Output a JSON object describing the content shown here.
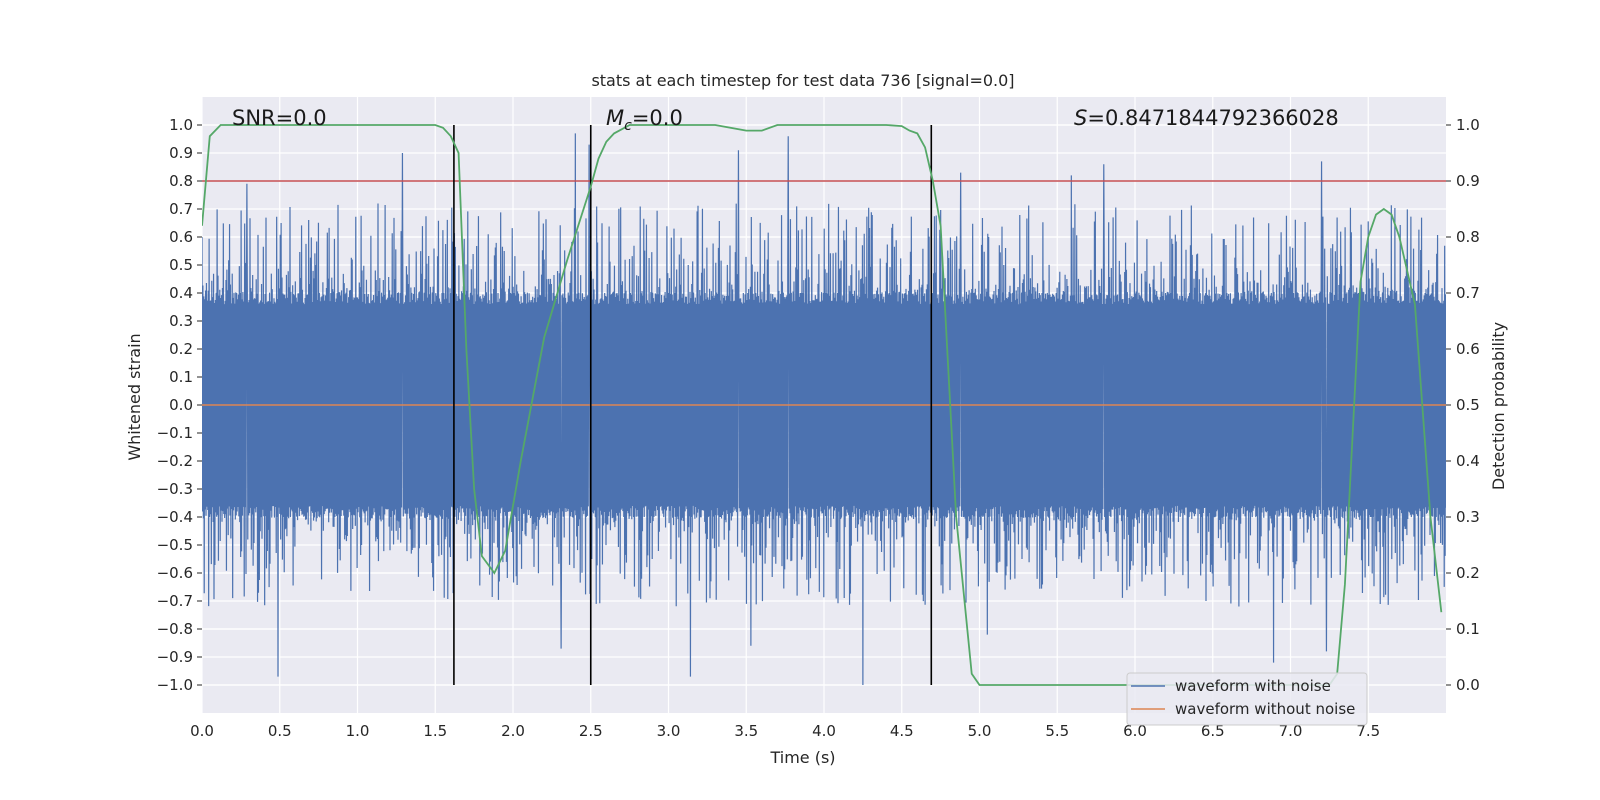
{
  "chart_data": {
    "type": "line",
    "title": "stats at each timestep for test data 736 [signal=0.0]",
    "xlabel": "Time (s)",
    "ylabel": "Whitened strain",
    "y2label": "Detection probability",
    "xlim": [
      0.0,
      8.0
    ],
    "ylim": [
      -1.1,
      1.1
    ],
    "y2lim": [
      -0.05,
      1.05
    ],
    "xticks": [
      "0.0",
      "0.5",
      "1.0",
      "1.5",
      "2.0",
      "2.5",
      "3.0",
      "3.5",
      "4.0",
      "4.5",
      "5.0",
      "5.5",
      "6.0",
      "6.5",
      "7.0",
      "7.5"
    ],
    "yticks": [
      "1.0",
      "0.9",
      "0.8",
      "0.7",
      "0.6",
      "0.5",
      "0.4",
      "0.3",
      "0.2",
      "0.1",
      "0.0",
      "−0.1",
      "−0.2",
      "−0.3",
      "−0.4",
      "−0.5",
      "−0.6",
      "−0.7",
      "−0.8",
      "−0.9",
      "−1.0"
    ],
    "y2ticks": [
      "1.0",
      "0.9",
      "0.8",
      "0.7",
      "0.6",
      "0.5",
      "0.4",
      "0.3",
      "0.2",
      "0.1",
      "0.0"
    ],
    "grid": true,
    "legend": {
      "placement": "lower-right",
      "entries": [
        {
          "label": "waveform with noise",
          "color": "#4c72b0"
        },
        {
          "label": "waveform without noise",
          "color": "#dd8452"
        }
      ]
    },
    "annotations": {
      "snr": "SNR=0.0",
      "mc_symbol": "M",
      "mc_sub": "c",
      "mc_value": "=0.0",
      "s_symbol": "S",
      "s_value": "=0.8471844792366028"
    },
    "threshold": {
      "axis": "y2",
      "value": 0.9,
      "color": "#c44e52"
    },
    "vlines": [
      1.62,
      2.5,
      4.69
    ],
    "noise_series": {
      "name": "waveform with noise",
      "color": "#4c72b0",
      "t_start": 0.0,
      "t_end": 8.0,
      "samples": 2800,
      "band_lower": -0.4,
      "band_upper": 0.4,
      "peaks_upper": [
        [
          0.29,
          0.79
        ],
        [
          1.29,
          0.9
        ],
        [
          2.4,
          0.97
        ],
        [
          2.49,
          0.93
        ],
        [
          3.45,
          0.91
        ],
        [
          3.77,
          0.96
        ],
        [
          4.88,
          0.83
        ],
        [
          5.59,
          0.82
        ],
        [
          5.8,
          0.86
        ],
        [
          7.2,
          0.87
        ]
      ],
      "peaks_lower": [
        [
          0.49,
          -0.97
        ],
        [
          2.31,
          -0.87
        ],
        [
          3.14,
          -0.97
        ],
        [
          4.25,
          -1.0
        ],
        [
          6.89,
          -0.92
        ],
        [
          7.23,
          -0.88
        ],
        [
          5.05,
          -0.82
        ],
        [
          3.53,
          -0.86
        ]
      ]
    },
    "clean_series": {
      "name": "waveform without noise",
      "color": "#dd8452",
      "x": [
        0.0,
        8.0
      ],
      "y": [
        0.0,
        0.0
      ]
    },
    "probability_series": {
      "name": "Detection probability",
      "color": "#55a868",
      "x": [
        0.0,
        0.05,
        0.12,
        0.25,
        0.5,
        0.8,
        1.0,
        1.2,
        1.4,
        1.5,
        1.55,
        1.6,
        1.65,
        1.7,
        1.75,
        1.8,
        1.88,
        1.95,
        2.05,
        2.2,
        2.35,
        2.5,
        2.55,
        2.6,
        2.65,
        2.75,
        3.0,
        3.3,
        3.5,
        3.6,
        3.7,
        3.9,
        4.2,
        4.4,
        4.5,
        4.55,
        4.6,
        4.65,
        4.7,
        4.75,
        4.85,
        4.95,
        5.0,
        5.1,
        5.4,
        5.8,
        6.2,
        6.6,
        7.0,
        7.2,
        7.25,
        7.3,
        7.35,
        7.4,
        7.45,
        7.5,
        7.55,
        7.6,
        7.65,
        7.7,
        7.8,
        7.9,
        7.97
      ],
      "y": [
        0.82,
        0.98,
        1.0,
        1.0,
        1.0,
        1.0,
        1.0,
        1.0,
        1.0,
        1.0,
        0.995,
        0.98,
        0.95,
        0.6,
        0.35,
        0.23,
        0.2,
        0.24,
        0.4,
        0.62,
        0.76,
        0.89,
        0.94,
        0.97,
        0.985,
        1.0,
        1.0,
        1.0,
        0.99,
        0.99,
        1.0,
        1.0,
        1.0,
        1.0,
        0.998,
        0.99,
        0.985,
        0.96,
        0.9,
        0.82,
        0.3,
        0.02,
        0.0,
        0.0,
        0.0,
        0.0,
        0.0,
        0.0,
        0.0,
        0.0,
        0.0,
        0.02,
        0.18,
        0.45,
        0.72,
        0.8,
        0.84,
        0.85,
        0.84,
        0.8,
        0.68,
        0.3,
        0.13
      ]
    }
  }
}
